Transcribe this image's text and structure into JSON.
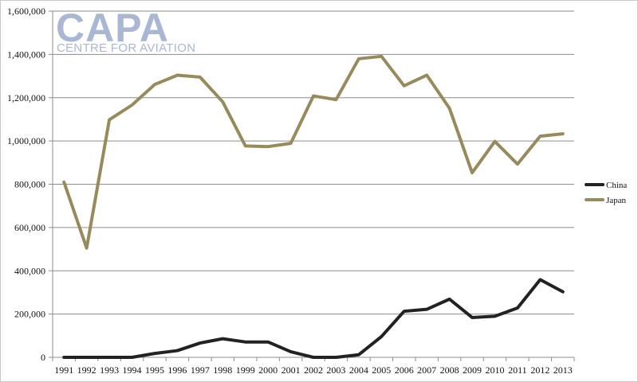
{
  "logo": {
    "main": "CAPA",
    "sub": "CENTRE FOR AVIATION"
  },
  "chart_data": {
    "type": "line",
    "title": "",
    "xlabel": "",
    "ylabel": "",
    "categories": [
      "1991",
      "1992",
      "1993",
      "1994",
      "1995",
      "1996",
      "1997",
      "1998",
      "1999",
      "2000",
      "2001",
      "2002",
      "2003",
      "2004",
      "2005",
      "2006",
      "2007",
      "2008",
      "2009",
      "2010",
      "2011",
      "2012",
      "2013"
    ],
    "ylim": [
      0,
      1600000
    ],
    "yticks": [
      "0",
      "200,000",
      "400,000",
      "600,000",
      "800,000",
      "1,000,000",
      "1,200,000",
      "1,400,000",
      "1,600,000"
    ],
    "grid": true,
    "legend_position": "right",
    "series": [
      {
        "name": "China",
        "color": "#222222",
        "values": [
          0,
          0,
          0,
          0,
          18000,
          31000,
          66000,
          86000,
          71000,
          71000,
          26000,
          0,
          0,
          12000,
          96000,
          213000,
          222000,
          269000,
          184000,
          190000,
          228000,
          359000,
          303000
        ]
      },
      {
        "name": "Japan",
        "color": "#978a5c",
        "values": [
          810000,
          505000,
          1098000,
          1166000,
          1261000,
          1304000,
          1295000,
          1181000,
          977000,
          974000,
          989000,
          1208000,
          1191000,
          1380000,
          1391000,
          1255000,
          1304000,
          1151000,
          853000,
          998000,
          893000,
          1022000,
          1033000
        ]
      }
    ]
  }
}
